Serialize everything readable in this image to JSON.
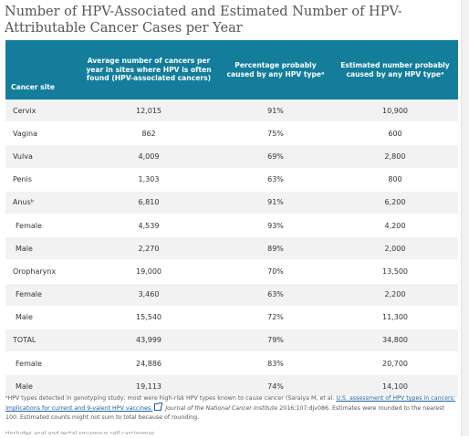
{
  "title": "Number of HPV-Associated and Estimated Number of HPV-Attributable Cancer Cases per Year",
  "table": {
    "headers": {
      "site": "Cancer site",
      "average": "Average number of cancers per year in sites where HPV is often found (HPV-associated cancers)",
      "percentage": "Percentage probably caused by any HPV typeᵃ",
      "estimated": "Estimated number probably caused by any HPV typeᵃ"
    },
    "rows": [
      {
        "site": "Cervix",
        "sub": false,
        "average": "12,015",
        "percentage": "91%",
        "estimated": "10,900"
      },
      {
        "site": "Vagina",
        "sub": false,
        "average": "862",
        "percentage": "75%",
        "estimated": "600"
      },
      {
        "site": "Vulva",
        "sub": false,
        "average": "4,009",
        "percentage": "69%",
        "estimated": "2,800"
      },
      {
        "site": "Penis",
        "sub": false,
        "average": "1,303",
        "percentage": "63%",
        "estimated": "800"
      },
      {
        "site": "Anusᵇ",
        "sub": false,
        "average": "6,810",
        "percentage": "91%",
        "estimated": "6,200"
      },
      {
        "site": "Female",
        "sub": true,
        "average": "4,539",
        "percentage": "93%",
        "estimated": "4,200"
      },
      {
        "site": "Male",
        "sub": true,
        "average": "2,270",
        "percentage": "89%",
        "estimated": "2,000"
      },
      {
        "site": "Oropharynx",
        "sub": false,
        "average": "19,000",
        "percentage": "70%",
        "estimated": "13,500"
      },
      {
        "site": "Female",
        "sub": true,
        "average": "3,460",
        "percentage": "63%",
        "estimated": "2,200"
      },
      {
        "site": "Male",
        "sub": true,
        "average": "15,540",
        "percentage": "72%",
        "estimated": "11,300"
      },
      {
        "site": "TOTAL",
        "sub": false,
        "average": "43,999",
        "percentage": "79%",
        "estimated": "34,800"
      },
      {
        "site": "Female",
        "sub": true,
        "average": "24,886",
        "percentage": "83%",
        "estimated": "20,700"
      },
      {
        "site": "Male",
        "sub": true,
        "average": "19,113",
        "percentage": "74%",
        "estimated": "14,100"
      }
    ]
  },
  "footnotes": {
    "a_prefix": "ᵃHPV types detected in genotyping study; most were high-risk HPV types known to cause cancer (Saraiya M, et al. ",
    "a_link": "U.S. assessment of HPV types in cancers: implications for current and 9-valent HPV vaccines.",
    "a_journal": "Journal of the National Cancer Institute",
    "a_suffix": " 2016;107:djv086. Estimates were rounded to the nearest 100. Estimated counts might not sum to total because of rounding.",
    "b_partial": "ᵇIncludes anal and rectal squamous cell carcinomas."
  }
}
